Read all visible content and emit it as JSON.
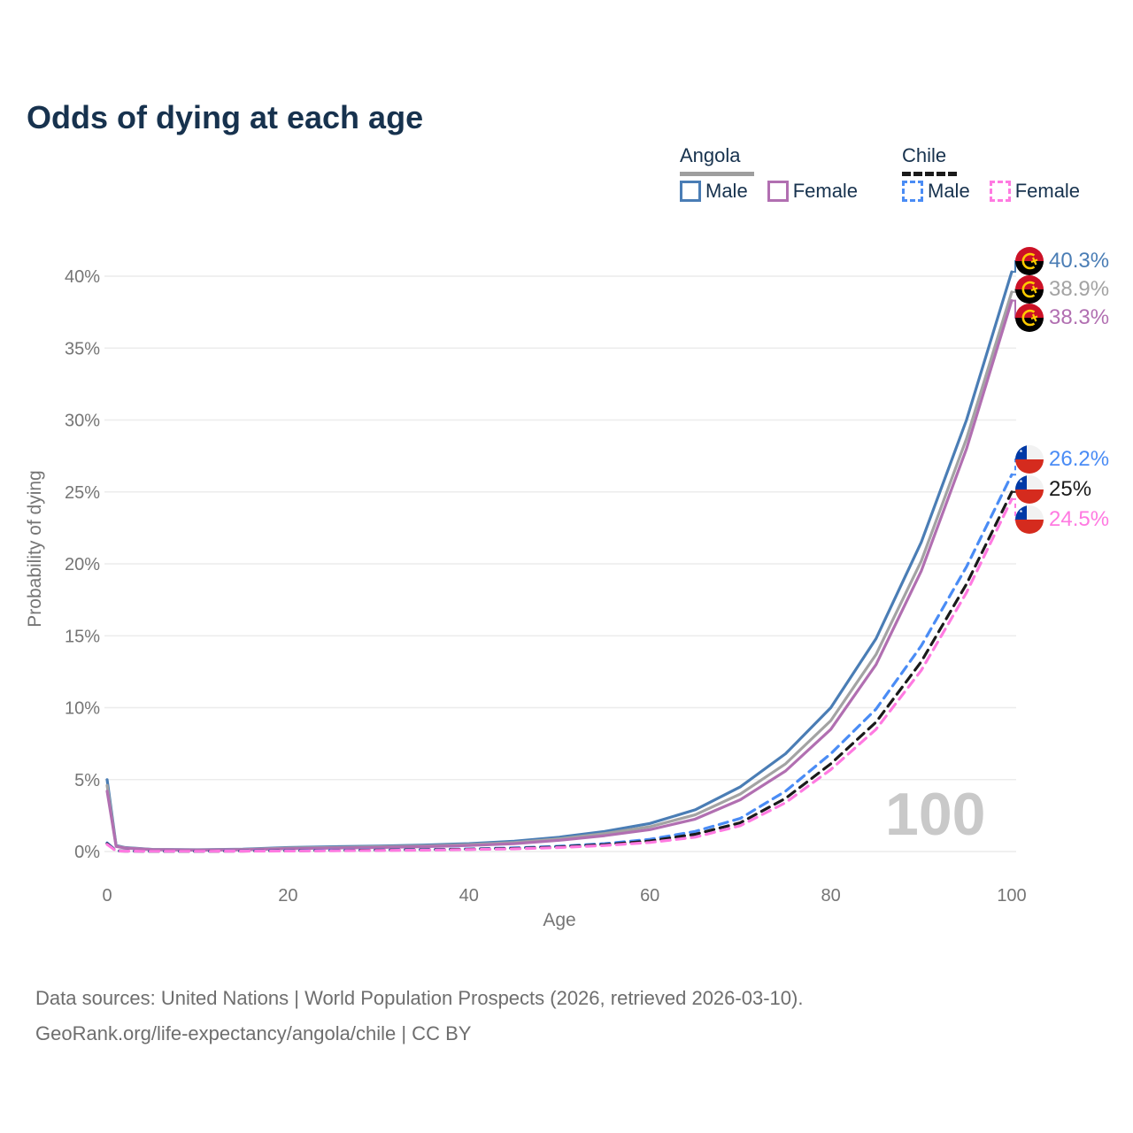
{
  "title": "Odds of dying at each age",
  "legend": {
    "groups": [
      {
        "label": "Angola",
        "line_style": "solid",
        "underline_color": "#9e9e9e",
        "items": [
          {
            "label": "Male",
            "color": "#4a7db5"
          },
          {
            "label": "Female",
            "color": "#b16fb1"
          }
        ]
      },
      {
        "label": "Chile",
        "line_style": "dashed",
        "underline_color": "#1a1a1a",
        "items": [
          {
            "label": "Male",
            "color": "#4a8cf5"
          },
          {
            "label": "Female",
            "color": "#ff7ae1"
          }
        ]
      }
    ]
  },
  "chart_data": {
    "type": "line",
    "title": "Odds of dying at each age",
    "xlabel": "Age",
    "ylabel": "Probability of dying",
    "xlim": [
      0,
      100
    ],
    "ylim": [
      0,
      40
    ],
    "xticks": [
      0,
      20,
      40,
      60,
      80,
      100
    ],
    "yticks": [
      "0%",
      "5%",
      "10%",
      "15%",
      "20%",
      "25%",
      "30%",
      "35%",
      "40%"
    ],
    "grid": true,
    "legend_position": "top-right",
    "watermark": "100",
    "x": [
      0,
      1,
      2,
      5,
      10,
      15,
      20,
      25,
      30,
      35,
      40,
      45,
      50,
      55,
      60,
      65,
      70,
      75,
      80,
      85,
      90,
      95,
      100
    ],
    "series": [
      {
        "name": "Angola Male",
        "country": "Angola",
        "sex": "male",
        "style": "solid",
        "color": "#4a7db5",
        "flag": "angola",
        "end_label": "40.3%",
        "values": [
          5.0,
          0.42,
          0.28,
          0.15,
          0.12,
          0.16,
          0.28,
          0.33,
          0.38,
          0.45,
          0.55,
          0.72,
          1.0,
          1.4,
          1.95,
          2.9,
          4.5,
          6.8,
          10.0,
          14.8,
          21.5,
          30.0,
          40.3
        ]
      },
      {
        "name": "Angola Both sexes",
        "country": "Angola",
        "sex": "both",
        "style": "solid",
        "color": "#a3a3a3",
        "flag": "angola",
        "end_label": "38.9%",
        "values": [
          4.6,
          0.38,
          0.26,
          0.14,
          0.11,
          0.14,
          0.24,
          0.28,
          0.33,
          0.39,
          0.48,
          0.63,
          0.88,
          1.25,
          1.72,
          2.55,
          4.0,
          6.1,
          9.1,
          13.7,
          20.2,
          28.7,
          38.9
        ]
      },
      {
        "name": "Angola Female",
        "country": "Angola",
        "sex": "female",
        "style": "solid",
        "color": "#b16fb1",
        "flag": "angola",
        "end_label": "38.3%",
        "values": [
          4.2,
          0.35,
          0.24,
          0.13,
          0.1,
          0.12,
          0.2,
          0.24,
          0.28,
          0.34,
          0.42,
          0.55,
          0.78,
          1.1,
          1.52,
          2.25,
          3.6,
          5.6,
          8.5,
          13.0,
          19.5,
          28.0,
          38.3
        ]
      },
      {
        "name": "Chile Male",
        "country": "Chile",
        "sex": "male",
        "style": "dashed",
        "color": "#4a8cf5",
        "flag": "chile",
        "end_label": "26.2%",
        "values": [
          0.6,
          0.05,
          0.03,
          0.02,
          0.02,
          0.04,
          0.07,
          0.09,
          0.11,
          0.14,
          0.18,
          0.25,
          0.37,
          0.55,
          0.85,
          1.4,
          2.3,
          4.2,
          6.8,
          9.9,
          14.3,
          19.8,
          26.2
        ]
      },
      {
        "name": "Chile Both sexes",
        "country": "Chile",
        "sex": "both",
        "style": "dashed",
        "color": "#1a1a1a",
        "flag": "chile",
        "end_label": "25%",
        "values": [
          0.55,
          0.045,
          0.028,
          0.018,
          0.018,
          0.03,
          0.05,
          0.07,
          0.09,
          0.115,
          0.155,
          0.215,
          0.32,
          0.48,
          0.73,
          1.2,
          2.0,
          3.7,
          6.1,
          9.0,
          13.2,
          18.6,
          25.0
        ]
      },
      {
        "name": "Chile Female",
        "country": "Chile",
        "sex": "female",
        "style": "dashed",
        "color": "#ff7ae1",
        "flag": "chile",
        "end_label": "24.5%",
        "values": [
          0.5,
          0.04,
          0.025,
          0.016,
          0.016,
          0.025,
          0.04,
          0.055,
          0.075,
          0.095,
          0.135,
          0.185,
          0.28,
          0.42,
          0.63,
          1.0,
          1.8,
          3.4,
          5.7,
          8.5,
          12.6,
          18.0,
          24.5
        ]
      }
    ]
  },
  "footer": {
    "line1": "Data sources: United Nations | World Population Prospects (2026, retrieved 2026-03-10).",
    "line2": "GeoRank.org/life-expectancy/angola/chile | CC BY"
  }
}
